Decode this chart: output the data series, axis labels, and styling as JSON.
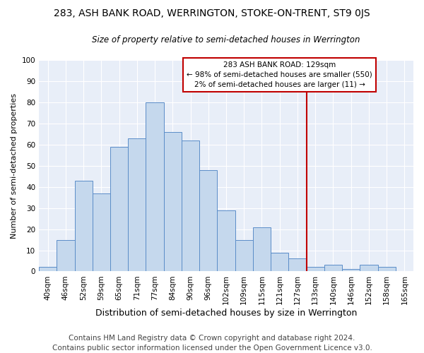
{
  "title": "283, ASH BANK ROAD, WERRINGTON, STOKE-ON-TRENT, ST9 0JS",
  "subtitle": "Size of property relative to semi-detached houses in Werrington",
  "xlabel": "Distribution of semi-detached houses by size in Werrington",
  "ylabel": "Number of semi-detached properties",
  "footer_line1": "Contains HM Land Registry data © Crown copyright and database right 2024.",
  "footer_line2": "Contains public sector information licensed under the Open Government Licence v3.0.",
  "categories": [
    "40sqm",
    "46sqm",
    "52sqm",
    "59sqm",
    "65sqm",
    "71sqm",
    "77sqm",
    "84sqm",
    "90sqm",
    "96sqm",
    "102sqm",
    "109sqm",
    "115sqm",
    "121sqm",
    "127sqm",
    "133sqm",
    "140sqm",
    "146sqm",
    "152sqm",
    "158sqm",
    "165sqm"
  ],
  "values": [
    2,
    15,
    43,
    37,
    59,
    63,
    80,
    66,
    62,
    48,
    29,
    15,
    21,
    9,
    6,
    2,
    3,
    1,
    3,
    2,
    0
  ],
  "bar_color": "#c5d8ed",
  "bar_edge_color": "#5b8dc8",
  "highlight_color": "#c00000",
  "highlight_bar_index": 14,
  "annotation_line1": "283 ASH BANK ROAD: 129sqm",
  "annotation_line2": "← 98% of semi-detached houses are smaller (550)",
  "annotation_line3": "2% of semi-detached houses are larger (11) →",
  "ylim": [
    0,
    100
  ],
  "yticks": [
    0,
    10,
    20,
    30,
    40,
    50,
    60,
    70,
    80,
    90,
    100
  ],
  "background_color": "#e8eef8",
  "title_fontsize": 10,
  "subtitle_fontsize": 8.5,
  "xlabel_fontsize": 9,
  "ylabel_fontsize": 8,
  "footer_fontsize": 7.5,
  "tick_fontsize": 7.5
}
